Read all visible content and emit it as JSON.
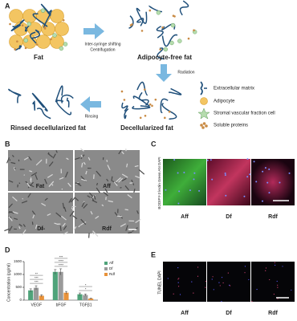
{
  "panel_a": {
    "label": "A",
    "fat": "Fat",
    "step1": [
      "Inter-syringe shifting",
      "Centrifugation"
    ],
    "aff": "Adipocyte-free fat",
    "step2": "Radiation",
    "df": "Decellularized fat",
    "step3": "Rinsing",
    "rdf": "Rinsed decellularized fat",
    "legend": [
      "Extracellular matrix",
      "Adipocyte",
      "Stromal vascular fraction cell",
      "Soluble proteins"
    ]
  },
  "panel_b": {
    "label": "B",
    "images": [
      "Fat",
      "Aff",
      "Df",
      "Rdf"
    ]
  },
  "panel_c": {
    "label": "C",
    "stain": "BODIPY-3 lectin Green AN DAPI",
    "images": [
      "Aff",
      "Df",
      "Rdf"
    ]
  },
  "chart_data": {
    "type": "bar",
    "panel_label": "D",
    "y_label": "Concentration (pg/ml)",
    "categories": [
      "VEGF",
      "bFGF",
      "TGFβ1"
    ],
    "series": [
      {
        "name": "Aff",
        "color": "#4fa37a",
        "values": [
          380,
          1100,
          230
        ],
        "errors": [
          60,
          90,
          50
        ]
      },
      {
        "name": "Df",
        "color": "#9a9a9a",
        "values": [
          480,
          1100,
          200
        ],
        "errors": [
          80,
          120,
          40
        ]
      },
      {
        "name": "Rdf",
        "color": "#e8923a",
        "values": [
          170,
          290,
          60
        ],
        "errors": [
          40,
          50,
          20
        ]
      }
    ],
    "significance": [
      [
        "***",
        "***",
        "**"
      ],
      [
        "****",
        "****",
        "***"
      ],
      [
        "*",
        "*"
      ]
    ],
    "ylim": [
      0,
      1500
    ],
    "yticks": [
      0,
      500,
      1000,
      1500
    ]
  },
  "panel_e": {
    "label": "E",
    "stain": "TUNEL DAPI",
    "images": [
      "Aff",
      "Df",
      "Rdf"
    ]
  }
}
